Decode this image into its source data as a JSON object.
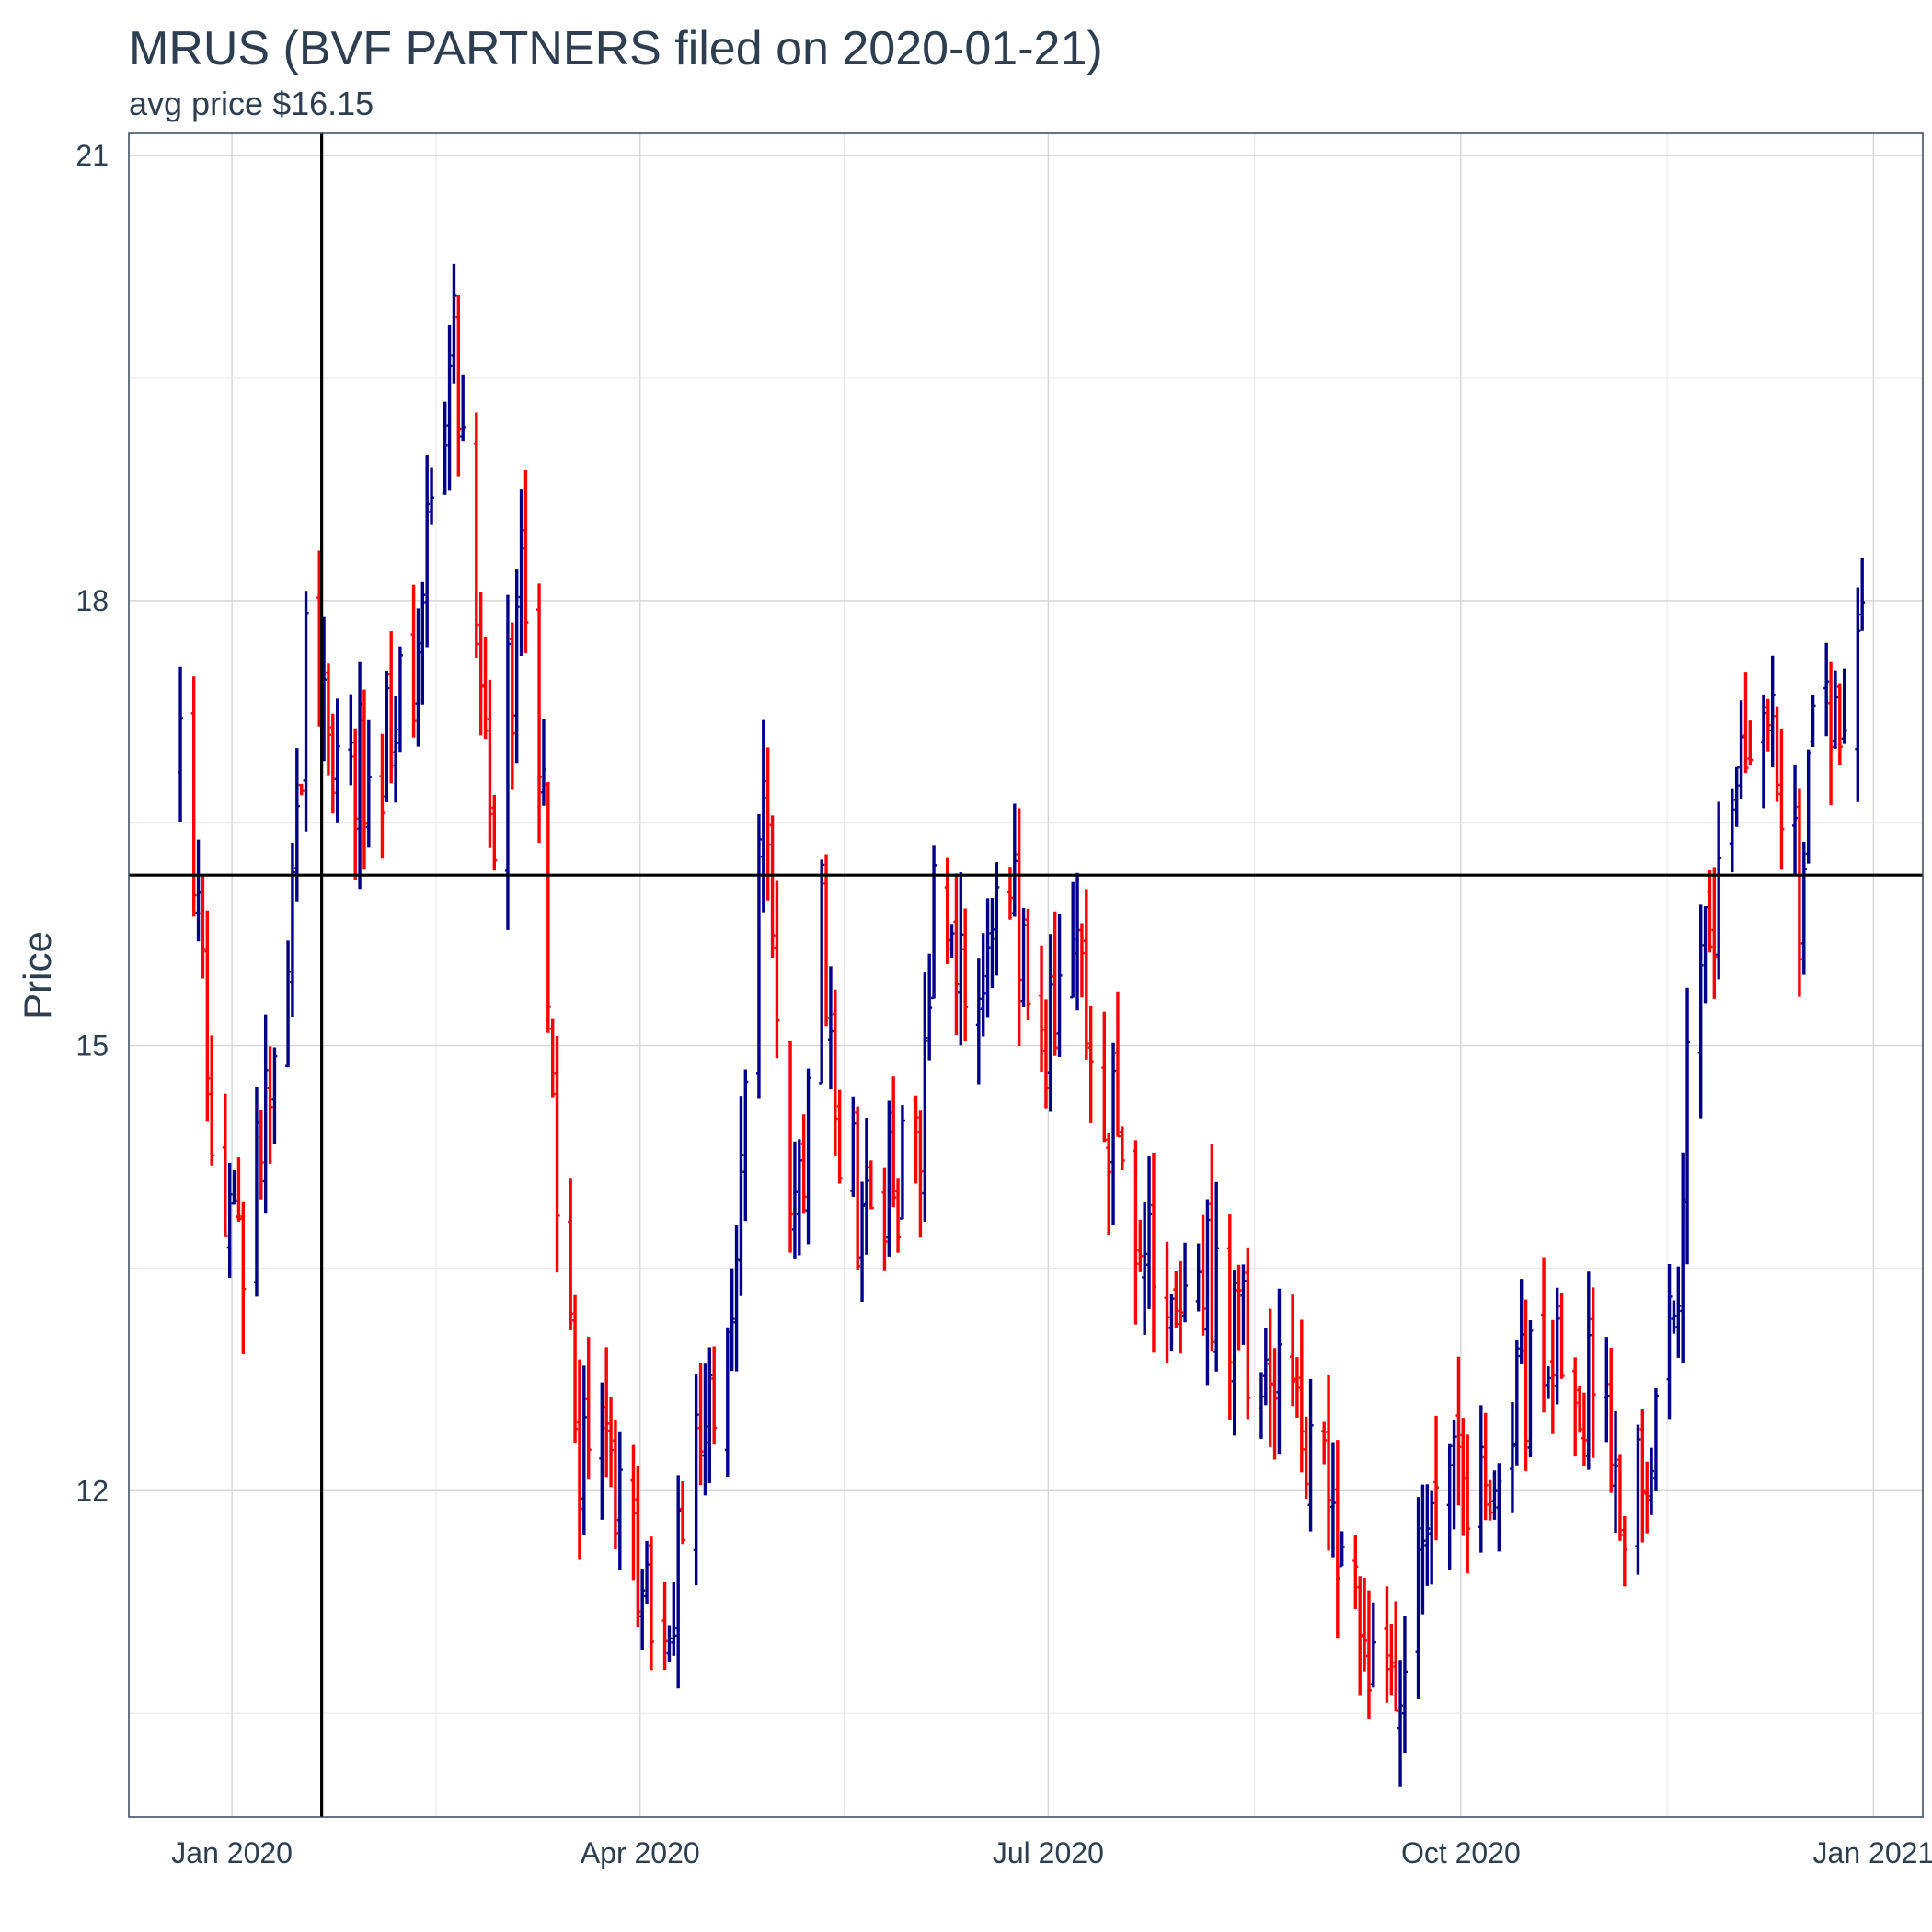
{
  "chart_data": {
    "type": "ohlc",
    "title": "MRUS (BVF PARTNERS filed on 2020-01-21)",
    "subtitle": "avg price $16.15",
    "xlabel": "",
    "ylabel": "Price",
    "x_ticks": [
      "Jan 2020",
      "Apr 2020",
      "Jul 2020",
      "Oct 2020",
      "Jan 2021"
    ],
    "x_tick_dates": [
      "2020-01-01",
      "2020-04-01",
      "2020-07-01",
      "2020-10-01",
      "2021-01-01"
    ],
    "xlim": [
      "2019-12-09",
      "2021-01-12"
    ],
    "y_ticks": [
      12,
      15,
      18,
      21
    ],
    "ylim": [
      9.8,
      21.15
    ],
    "grid": true,
    "legend": "none",
    "up_color": "#00008b",
    "down_color": "#ff0000",
    "reference_lines": {
      "filing_date": "2020-01-21",
      "avg_price": 16.15
    },
    "anchors": [
      [
        "2019-12-20",
        16.9,
        20
      ],
      [
        "2019-12-24",
        15.8,
        20
      ],
      [
        "2019-12-27",
        14.5,
        20
      ],
      [
        "2020-01-02",
        13.5,
        20
      ],
      [
        "2020-01-07",
        14.6,
        20
      ],
      [
        "2020-01-13",
        15.6,
        20
      ],
      [
        "2020-01-17",
        17.5,
        20
      ],
      [
        "2020-01-24",
        16.9,
        20
      ],
      [
        "2020-02-03",
        16.9,
        20
      ],
      [
        "2020-02-10",
        17.6,
        20
      ],
      [
        "2020-02-14",
        18.7,
        20
      ],
      [
        "2020-02-19",
        19.8,
        20
      ],
      [
        "2020-02-24",
        17.3,
        20
      ],
      [
        "2020-02-28",
        16.6,
        20
      ],
      [
        "2020-03-05",
        18.0,
        20
      ],
      [
        "2020-03-10",
        16.5,
        20
      ],
      [
        "2020-03-13",
        14.0,
        20
      ],
      [
        "2020-03-18",
        12.0,
        20
      ],
      [
        "2020-03-24",
        12.3,
        20
      ],
      [
        "2020-03-31",
        11.4,
        20
      ],
      [
        "2020-04-03",
        10.9,
        20
      ],
      [
        "2020-04-09",
        11.5,
        20
      ],
      [
        "2020-04-14",
        12.3,
        20
      ],
      [
        "2020-04-20",
        13.0,
        20
      ],
      [
        "2020-04-24",
        15.0,
        20
      ],
      [
        "2020-04-28",
        16.6,
        20
      ],
      [
        "2020-05-01",
        14.8,
        20
      ],
      [
        "2020-05-06",
        13.8,
        20
      ],
      [
        "2020-05-11",
        15.8,
        20
      ],
      [
        "2020-05-14",
        14.7,
        20
      ],
      [
        "2020-05-19",
        13.9,
        20
      ],
      [
        "2020-05-26",
        14.1,
        20
      ],
      [
        "2020-06-02",
        14.2,
        20
      ],
      [
        "2020-06-05",
        15.9,
        20
      ],
      [
        "2020-06-10",
        15.6,
        20
      ],
      [
        "2020-06-15",
        15.4,
        20
      ],
      [
        "2020-06-19",
        15.9,
        20
      ],
      [
        "2020-06-24",
        15.8,
        20
      ],
      [
        "2020-06-29",
        14.9,
        20
      ],
      [
        "2020-07-06",
        15.6,
        20
      ],
      [
        "2020-07-13",
        14.6,
        20
      ],
      [
        "2020-07-20",
        13.9,
        20
      ],
      [
        "2020-07-27",
        13.6,
        20
      ],
      [
        "2020-08-03",
        13.5,
        20
      ],
      [
        "2020-08-10",
        13.2,
        20
      ],
      [
        "2020-08-17",
        12.9,
        20
      ],
      [
        "2020-08-24",
        12.6,
        20
      ],
      [
        "2020-08-31",
        11.9,
        20
      ],
      [
        "2020-09-08",
        11.3,
        20
      ],
      [
        "2020-09-14",
        10.5,
        20
      ],
      [
        "2020-09-18",
        11.1,
        20
      ],
      [
        "2020-09-24",
        12.0,
        20
      ],
      [
        "2020-09-30",
        11.9,
        20
      ],
      [
        "2020-10-06",
        12.1,
        20
      ],
      [
        "2020-10-13",
        12.6,
        20
      ],
      [
        "2020-10-20",
        13.2,
        20
      ],
      [
        "2020-10-27",
        12.8,
        20
      ],
      [
        "2020-11-02",
        12.6,
        20
      ],
      [
        "2020-11-06",
        11.7,
        20
      ],
      [
        "2020-11-12",
        12.5,
        20
      ],
      [
        "2020-11-17",
        13.2,
        20
      ],
      [
        "2020-11-20",
        14.6,
        20
      ],
      [
        "2020-11-25",
        15.9,
        20
      ],
      [
        "2020-12-01",
        16.6,
        20
      ],
      [
        "2020-12-07",
        17.4,
        20
      ],
      [
        "2020-12-11",
        16.7,
        20
      ],
      [
        "2020-12-15",
        16.0,
        20
      ],
      [
        "2020-12-18",
        17.6,
        20
      ],
      [
        "2020-12-22",
        17.4,
        20
      ],
      [
        "2020-12-29",
        17.6,
        20
      ]
    ],
    "seed": 20200121
  }
}
